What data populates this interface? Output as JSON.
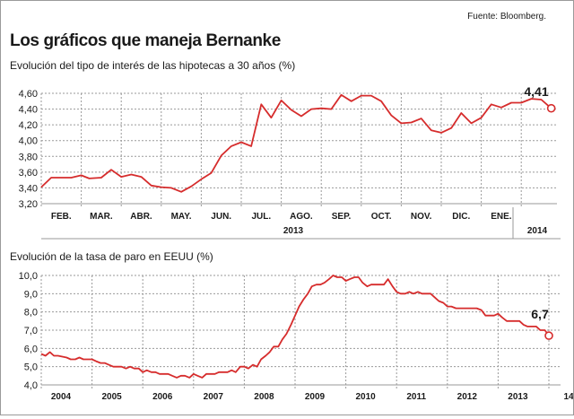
{
  "source": "Fuente: Bloomberg.",
  "title": "Los gráficos que maneja Bernanke",
  "colors": {
    "line": "#d62c2c",
    "grid": "#9a9a9a",
    "text": "#1a1a1a"
  },
  "chart_data": [
    {
      "type": "line",
      "title": "Evolución del tipo de interés de las hipotecas a 30 años (%)",
      "categories": [
        "FEB.",
        "MAR.",
        "ABR.",
        "MAY.",
        "JUN.",
        "JUL.",
        "AGO.",
        "SEP.",
        "OCT.",
        "NOV.",
        "DIC.",
        "ENE."
      ],
      "year_labels": [
        "2013",
        "2014"
      ],
      "ylim": [
        3.2,
        4.6
      ],
      "yticks": [
        "4,60",
        "4,40",
        "4,20",
        "4,00",
        "3,80",
        "3,60",
        "3,40",
        "3,20"
      ],
      "grid": true,
      "annotation": "4,41",
      "series": [
        {
          "x": [
            0,
            0.25,
            0.5,
            0.75,
            1,
            1.2,
            1.5,
            1.75,
            2,
            2.25,
            2.5,
            2.75,
            3,
            3.25,
            3.5,
            3.75,
            4,
            4.25,
            4.5,
            4.75,
            5,
            5.25,
            5.5,
            5.75,
            6,
            6.25,
            6.5,
            6.75,
            7,
            7.25,
            7.5,
            7.75,
            8,
            8.25,
            8.5,
            8.75,
            9,
            9.25,
            9.5,
            9.75,
            10,
            10.25,
            10.5,
            10.75,
            11,
            11.25,
            11.5,
            11.75,
            12,
            12.25,
            12.5,
            12.75
          ],
          "y": [
            3.41,
            3.53,
            3.53,
            3.53,
            3.56,
            3.52,
            3.53,
            3.63,
            3.54,
            3.57,
            3.54,
            3.43,
            3.41,
            3.4,
            3.35,
            3.42,
            3.51,
            3.59,
            3.81,
            3.93,
            3.98,
            3.93,
            4.46,
            4.29,
            4.51,
            4.39,
            4.31,
            4.4,
            4.41,
            4.4,
            4.58,
            4.5,
            4.57,
            4.57,
            4.5,
            4.32,
            4.22,
            4.23,
            4.28,
            4.13,
            4.1,
            4.16,
            4.35,
            4.22,
            4.29,
            4.46,
            4.42,
            4.48,
            4.48,
            4.53,
            4.52,
            4.41
          ]
        }
      ]
    },
    {
      "type": "line",
      "title": "Evolución de la tasa de paro en EEUU (%)",
      "categories": [
        "2004",
        "2005",
        "2006",
        "2007",
        "2008",
        "2009",
        "2010",
        "2011",
        "2012",
        "2013",
        "14"
      ],
      "ylim": [
        4.0,
        10.0
      ],
      "yticks": [
        "10,0",
        "9,0",
        "8,0",
        "7,0",
        "6,0",
        "5,0",
        "4,0"
      ],
      "grid": true,
      "annotation": "6,7",
      "series": [
        {
          "x": [
            0,
            0.083,
            0.17,
            0.25,
            0.33,
            0.5,
            0.58,
            0.67,
            0.75,
            0.83,
            0.92,
            1.0,
            1.08,
            1.17,
            1.25,
            1.33,
            1.42,
            1.5,
            1.58,
            1.67,
            1.75,
            1.83,
            1.92,
            2.0,
            2.08,
            2.17,
            2.25,
            2.33,
            2.42,
            2.5,
            2.58,
            2.67,
            2.75,
            2.83,
            2.92,
            3.0,
            3.08,
            3.17,
            3.25,
            3.33,
            3.42,
            3.5,
            3.58,
            3.67,
            3.75,
            3.83,
            3.92,
            4.0,
            4.08,
            4.17,
            4.25,
            4.33,
            4.42,
            4.5,
            4.58,
            4.67,
            4.75,
            4.83,
            4.92,
            5.0,
            5.08,
            5.17,
            5.25,
            5.33,
            5.42,
            5.5,
            5.58,
            5.67,
            5.75,
            5.83,
            5.92,
            6.0,
            6.08,
            6.17,
            6.25,
            6.33,
            6.42,
            6.5,
            6.58,
            6.67,
            6.75,
            6.83,
            6.92,
            7.0,
            7.08,
            7.17,
            7.25,
            7.33,
            7.42,
            7.5,
            7.58,
            7.67,
            7.75,
            7.83,
            7.92,
            8.0,
            8.08,
            8.17,
            8.25,
            8.33,
            8.42,
            8.5,
            8.58,
            8.67,
            8.75,
            8.83,
            8.92,
            9.0,
            9.08,
            9.17,
            9.25,
            9.33,
            9.42,
            9.5,
            9.58,
            9.67,
            9.75,
            9.83,
            9.92,
            10.0
          ],
          "y": [
            5.7,
            5.6,
            5.8,
            5.6,
            5.6,
            5.5,
            5.4,
            5.4,
            5.5,
            5.4,
            5.4,
            5.4,
            5.3,
            5.2,
            5.2,
            5.1,
            5.0,
            5.0,
            5.0,
            4.9,
            5.0,
            4.9,
            4.9,
            4.7,
            4.8,
            4.7,
            4.7,
            4.6,
            4.6,
            4.6,
            4.5,
            4.4,
            4.5,
            4.5,
            4.4,
            4.6,
            4.5,
            4.4,
            4.6,
            4.6,
            4.6,
            4.7,
            4.7,
            4.7,
            4.8,
            4.7,
            5.0,
            5.0,
            4.9,
            5.1,
            5.0,
            5.4,
            5.6,
            5.8,
            6.1,
            6.1,
            6.5,
            6.8,
            7.3,
            7.8,
            8.3,
            8.7,
            9.0,
            9.4,
            9.5,
            9.5,
            9.6,
            9.8,
            10.0,
            9.9,
            9.9,
            9.7,
            9.8,
            9.9,
            9.9,
            9.6,
            9.4,
            9.5,
            9.5,
            9.5,
            9.5,
            9.8,
            9.4,
            9.1,
            9.0,
            9.0,
            9.1,
            9.0,
            9.1,
            9.0,
            9.0,
            9.0,
            8.8,
            8.6,
            8.5,
            8.3,
            8.3,
            8.2,
            8.2,
            8.2,
            8.2,
            8.2,
            8.2,
            8.1,
            7.8,
            7.8,
            7.8,
            7.9,
            7.7,
            7.5,
            7.5,
            7.5,
            7.5,
            7.3,
            7.2,
            7.2,
            7.2,
            7.0,
            7.0,
            6.7
          ]
        }
      ]
    }
  ]
}
